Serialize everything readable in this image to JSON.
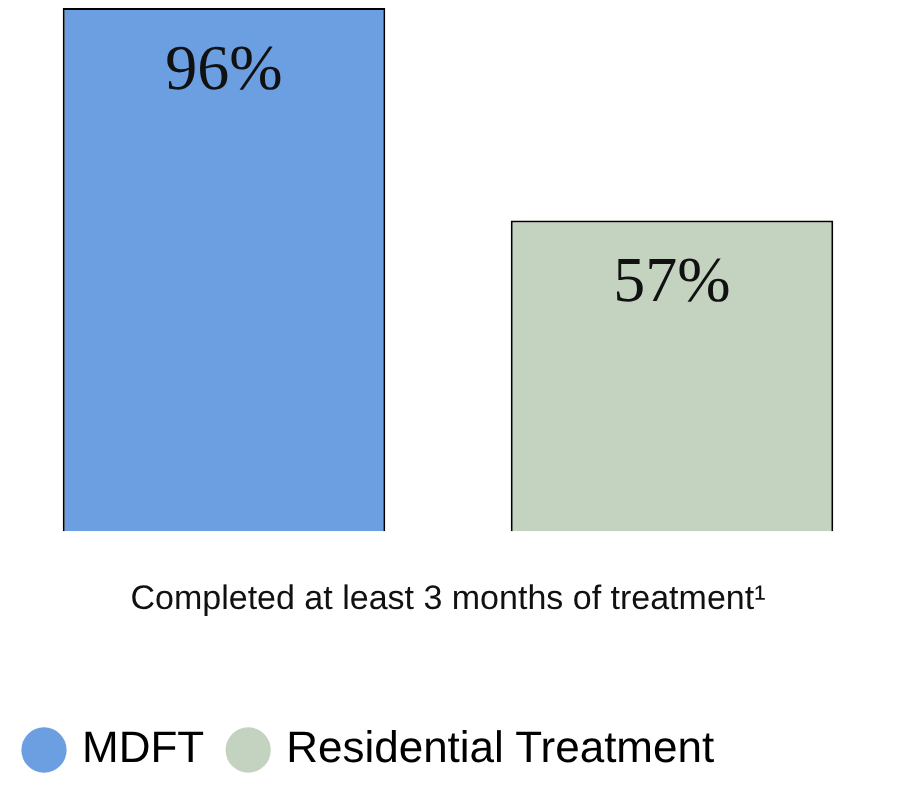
{
  "chart_data": {
    "type": "bar",
    "xlabel": "Completed at least 3 months of treatment¹",
    "categories": [
      null
    ],
    "series": [
      {
        "name": "MDFT",
        "color": "#6b9fe1",
        "values": [
          96
        ],
        "value_labels": [
          "96%"
        ]
      },
      {
        "name": "Residential Treatment",
        "color": "#c3d3c0",
        "values": [
          57
        ],
        "value_labels": [
          "57%"
        ]
      }
    ],
    "legend": "bottom",
    "grid": false
  }
}
